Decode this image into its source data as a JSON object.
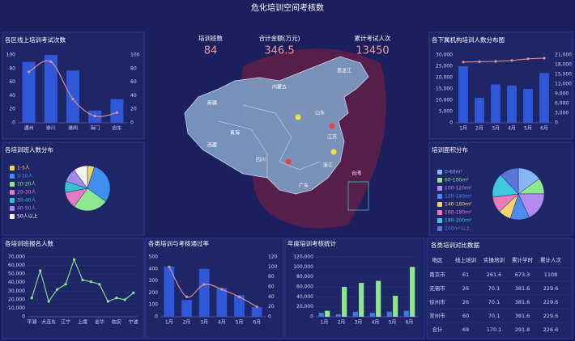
{
  "title": "危化培训空间考核数",
  "stats": [
    {
      "label": "培训班数",
      "value": 84
    },
    {
      "label": "合计金额(万元)",
      "value": 346.5
    },
    {
      "label": "累计考试人次",
      "value": 13450
    }
  ],
  "map": {
    "labels": [
      "黑龙江",
      "内蒙古",
      "新疆",
      "西藏",
      "青海",
      "四川",
      "山东",
      "江苏",
      "浙江",
      "广东",
      "台湾"
    ]
  },
  "table": {
    "title": "各类培训对比数据",
    "columns": [
      "地区",
      "线上培训",
      "实操培训",
      "累计学时",
      "累计人次"
    ],
    "rows": [
      [
        "南京市",
        "61",
        "261.6",
        "673.3",
        "1108"
      ],
      [
        "无锡市",
        "26",
        "70.1",
        "381.6",
        "229.6"
      ],
      [
        "徐州市",
        "26",
        "70.1",
        "381.6",
        "229.6"
      ],
      [
        "常州市",
        "60",
        "70.1",
        "381.6",
        "229.6"
      ],
      [
        "合计",
        "69",
        "170.1",
        "291.8",
        "226.6"
      ]
    ]
  },
  "chart_data": [
    {
      "type": "bar",
      "title": "各区线上培训考试次数",
      "categories": [
        "通州",
        "崇川",
        "港闸",
        "海门",
        "启东"
      ],
      "series": [
        {
          "color": "#2f58d8",
          "values": [
            90,
            100,
            77,
            18,
            35
          ]
        },
        {
          "type": "line",
          "smooth": true,
          "axis": "y2",
          "color": "#e59090",
          "values": [
            75,
            90,
            35,
            10,
            15
          ]
        }
      ],
      "ylim": [
        0,
        100
      ],
      "yticks": [
        0,
        20,
        40,
        60,
        80,
        100
      ],
      "y2lim": [
        0,
        100
      ],
      "y2ticks": [
        0,
        20,
        40,
        60,
        80,
        100
      ],
      "grid": false
    },
    {
      "type": "pie",
      "title": "各培训班人数分布",
      "categories": [
        "1-5人",
        "5-10人",
        "10-20人",
        "20-30人",
        "30-40人",
        "40-50人",
        "50人以上"
      ],
      "values": [
        5,
        30,
        25,
        12,
        8,
        10,
        10
      ],
      "colors": [
        "#f2d45c",
        "#3d8ff0",
        "#8ee88e",
        "#e17ac0",
        "#36c2cf",
        "#a48ae8",
        "#f4f4f4"
      ]
    },
    {
      "type": "line",
      "title": "各培训班报名人数",
      "categories": [
        "平湖",
        null,
        "大连东",
        null,
        "江宁",
        null,
        "上虞",
        null,
        "金华",
        null,
        "临安",
        null,
        "宁波"
      ],
      "series": [
        {
          "color": "#86ec86",
          "values": [
            22000,
            54000,
            18000,
            32000,
            38000,
            67000,
            43000,
            41000,
            38000,
            18000,
            22000,
            20000,
            28000
          ]
        }
      ],
      "ylim": [
        0,
        70000
      ],
      "yticks": [
        0,
        {
          "value": 10000,
          "label": "10,000"
        },
        {
          "value": 20000,
          "label": "20,000"
        },
        {
          "value": 30000,
          "label": "30,000"
        },
        {
          "value": 40000,
          "label": "40,000"
        },
        {
          "value": 50000,
          "label": "50,000"
        },
        {
          "value": 60000,
          "label": "60,000"
        },
        {
          "value": 70000,
          "label": "70,000"
        }
      ],
      "grid": true
    },
    {
      "type": "bar",
      "title": "各下属机构培训人数分布图",
      "categories": [
        "1月",
        "2月",
        "3月",
        "4月",
        "5月",
        "6月"
      ],
      "series": [
        {
          "color": "#2f58d8",
          "values": [
            25000,
            11000,
            17000,
            16500,
            15000,
            22000
          ]
        },
        {
          "type": "line",
          "axis": "y2",
          "color": "#e59090",
          "values": [
            18800,
            18900,
            19000,
            19300,
            19800,
            20000
          ]
        }
      ],
      "ylim": [
        0,
        30000
      ],
      "yticks": [
        0,
        {
          "value": 5000,
          "label": "5,000"
        },
        {
          "value": 10000,
          "label": "10,000"
        },
        {
          "value": 15000,
          "label": "15,000"
        },
        {
          "value": 20000,
          "label": "20,000"
        },
        {
          "value": 25000,
          "label": "25,000"
        },
        {
          "value": 30000,
          "label": "30,000"
        }
      ],
      "y2lim": [
        0,
        21000
      ],
      "y2ticks": [
        0,
        {
          "value": 3000,
          "label": "3,000"
        },
        {
          "value": 6000,
          "label": "6,000"
        },
        {
          "value": 9000,
          "label": "9,000"
        },
        {
          "value": 12000,
          "label": "12,000"
        },
        {
          "value": 15000,
          "label": "15,000"
        },
        {
          "value": 18000,
          "label": "18,000"
        },
        {
          "value": 21000,
          "label": "21,000"
        }
      ],
      "grid": false
    },
    {
      "type": "pie",
      "title": "培训面积分布",
      "categories": [
        "0-60m²",
        "60-100m²",
        "100-120m²",
        "120-140m²",
        "140-160m²",
        "160-180m²",
        "180-200m²",
        "200m²以上"
      ],
      "values": [
        15,
        10,
        18,
        12,
        8,
        10,
        15,
        12
      ],
      "colors": [
        "#8ab4f8",
        "#8ee88e",
        "#b48cf0",
        "#4a8cf0",
        "#f5d36b",
        "#e87ab8",
        "#3ec8e0",
        "#5a74d8"
      ]
    },
    {
      "type": "bar",
      "title": "各类培训与考核通过率",
      "categories": [
        "1月",
        "2月",
        "3月",
        "4月",
        "5月",
        "6月"
      ],
      "series": [
        {
          "color": "#2f58d8",
          "values": [
            420,
            140,
            400,
            240,
            180,
            80
          ]
        },
        {
          "type": "line",
          "smooth": true,
          "axis": "y2",
          "color": "#e59090",
          "values": [
            100,
            40,
            65,
            55,
            40,
            20
          ]
        }
      ],
      "ylim": [
        0,
        500
      ],
      "yticks": [
        0,
        100,
        200,
        300,
        400,
        500
      ],
      "y2lim": [
        0,
        120
      ],
      "y2ticks": [
        0,
        20,
        40,
        60,
        80,
        100,
        120
      ],
      "grid": false
    },
    {
      "type": "bar",
      "title": "年度培训考核统计",
      "categories": [
        "1月",
        "2月",
        "3月",
        "4月",
        "5月",
        "6月"
      ],
      "series": [
        {
          "color": "#3a7de0",
          "values": [
            8000,
            5000,
            10000,
            8000,
            10000,
            12000
          ]
        },
        {
          "color": "#8ee88e",
          "values": [
            12000,
            60000,
            68000,
            72000,
            42000,
            100000
          ]
        }
      ],
      "ylim": [
        0,
        120000
      ],
      "yticks": [
        0,
        {
          "value": 20000,
          "label": "20,000"
        },
        {
          "value": 40000,
          "label": "40,000"
        },
        {
          "value": 60000,
          "label": "60,000"
        },
        {
          "value": 80000,
          "label": "80,000"
        },
        {
          "value": 100000,
          "label": "100,000"
        },
        {
          "value": 120000,
          "label": "120,000"
        }
      ],
      "grid": true
    }
  ]
}
